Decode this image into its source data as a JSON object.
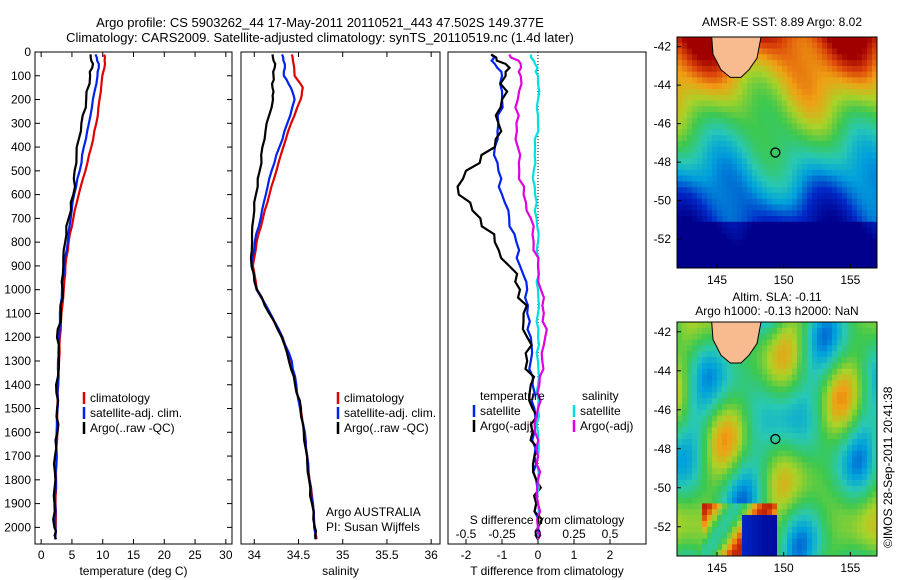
{
  "header": {
    "line1": "Argo profile: CS 5903262_44 17-May-2011 20110521_443 47.502S 149.377E",
    "line2": "Climatology: CARS2009. Satellite-adjusted climatology: synTS_20110519.nc (1.4d later)"
  },
  "colors": {
    "climatology": "#e00000",
    "satellite": "#0022ee",
    "argo": "#000000",
    "salinity_satellite": "#00e0e0",
    "salinity_argo": "#e000e0"
  },
  "chart_data": [
    {
      "type": "line",
      "panel": "temperature",
      "xlabel": "temperature (deg C)",
      "ylabel": "",
      "xlim": [
        -1,
        31
      ],
      "ylim": [
        2070,
        0
      ],
      "x_ticks": [
        "0",
        "5",
        "10",
        "15",
        "20",
        "25",
        "30"
      ],
      "y_ticks": [
        "0",
        "100",
        "200",
        "300",
        "400",
        "500",
        "600",
        "700",
        "800",
        "900",
        "1000",
        "1100",
        "1200",
        "1300",
        "1400",
        "1500",
        "1600",
        "1700",
        "1800",
        "1900",
        "2000"
      ],
      "legend": [
        "climatology",
        "satellite-adj. clim.",
        "Argo(..raw -QC)"
      ],
      "legend_position": "lower-right",
      "y": [
        10,
        50,
        100,
        200,
        300,
        400,
        500,
        600,
        700,
        800,
        900,
        1000,
        1100,
        1200,
        1300,
        1400,
        1500,
        1600,
        1700,
        1800,
        1900,
        2000,
        2050
      ],
      "series": [
        {
          "name": "climatology",
          "values": [
            10.2,
            10.3,
            10.0,
            9.5,
            8.9,
            8.2,
            7.2,
            6.1,
            5.2,
            4.5,
            4.0,
            3.6,
            3.3,
            3.1,
            2.9,
            2.8,
            2.7,
            2.6,
            2.5,
            2.45,
            2.4,
            2.3,
            2.3
          ]
        },
        {
          "name": "satellite-adj. clim.",
          "values": [
            8.9,
            9.3,
            9.1,
            8.5,
            7.8,
            7.0,
            6.2,
            5.4,
            4.8,
            4.3,
            3.8,
            3.4,
            3.1,
            2.9,
            2.8,
            2.7,
            2.6,
            2.55,
            2.5,
            2.4,
            2.35,
            2.3,
            2.3
          ]
        },
        {
          "name": "Argo(..raw -QC)",
          "values": [
            8.1,
            8.3,
            8.0,
            7.2,
            6.5,
            6.0,
            5.6,
            5.0,
            4.5,
            4.1,
            3.7,
            3.3,
            3.0,
            2.8,
            2.7,
            2.6,
            2.55,
            2.5,
            2.45,
            2.4,
            2.35,
            2.3,
            2.3
          ]
        }
      ]
    },
    {
      "type": "line",
      "panel": "salinity",
      "xlabel": "salinity",
      "xlim": [
        33.85,
        36.1
      ],
      "ylim": [
        2070,
        0
      ],
      "x_ticks": [
        "34",
        "34.5",
        "35",
        "35.5",
        "36"
      ],
      "legend": [
        "climatology",
        "satellite-adj. clim.",
        "Argo(..raw -QC)"
      ],
      "legend_position": "lower-right",
      "annotation": [
        "Argo AUSTRALIA",
        "PI: Susan Wijffels"
      ],
      "y": [
        10,
        50,
        100,
        150,
        200,
        300,
        400,
        500,
        600,
        700,
        800,
        900,
        1000,
        1100,
        1200,
        1300,
        1400,
        1500,
        1600,
        1700,
        1800,
        1900,
        2000,
        2050
      ],
      "series": [
        {
          "name": "climatology",
          "values": [
            34.42,
            34.44,
            34.46,
            34.55,
            34.52,
            34.42,
            34.33,
            34.25,
            34.17,
            34.1,
            34.03,
            33.98,
            34.03,
            34.18,
            34.32,
            34.42,
            34.47,
            34.52,
            34.57,
            34.6,
            34.63,
            34.66,
            34.68,
            34.7
          ]
        },
        {
          "name": "satellite-adj. clim.",
          "values": [
            34.32,
            34.34,
            34.33,
            34.42,
            34.46,
            34.38,
            34.28,
            34.2,
            34.13,
            34.07,
            34.01,
            33.97,
            34.03,
            34.18,
            34.32,
            34.42,
            34.47,
            34.52,
            34.57,
            34.6,
            34.63,
            34.66,
            34.68,
            34.7
          ]
        },
        {
          "name": "Argo(..raw -QC)",
          "values": [
            34.21,
            34.23,
            34.22,
            34.2,
            34.21,
            34.15,
            34.1,
            34.05,
            34.02,
            34.0,
            33.98,
            33.96,
            34.02,
            34.18,
            34.3,
            34.4,
            34.46,
            34.52,
            34.57,
            34.6,
            34.63,
            34.66,
            34.68,
            34.7
          ]
        }
      ]
    },
    {
      "type": "line",
      "panel": "difference",
      "xlabel": "T difference from climatology",
      "xlabel_top": "S difference from climatology",
      "xlim": [
        -2.5,
        3.0
      ],
      "ylim": [
        2070,
        0
      ],
      "x_ticks": [
        "-2",
        "-1",
        "0",
        "1",
        "2"
      ],
      "x2_ticks": [
        "-0.5",
        "-0.25",
        "0",
        "0.25",
        "0.5"
      ],
      "legend_temperature": {
        "title": "temperature",
        "items": [
          "satellite",
          "Argo(-adj)"
        ]
      },
      "legend_salinity": {
        "title": "salinity",
        "items": [
          "satellite",
          "Argo(-adj)"
        ]
      },
      "y": [
        10,
        50,
        100,
        200,
        300,
        400,
        500,
        600,
        700,
        800,
        900,
        1000,
        1100,
        1200,
        1300,
        1400,
        1500,
        1600,
        1700,
        1800,
        1900,
        2000,
        2050
      ],
      "series": [
        {
          "name": "temperature satellite",
          "values": [
            -1.3,
            -1.2,
            -1.0,
            -1.0,
            -1.1,
            -1.2,
            -1.1,
            -1.0,
            -0.8,
            -0.6,
            -0.5,
            -0.3,
            -0.3,
            -0.2,
            -0.2,
            -0.15,
            -0.1,
            -0.1,
            -0.1,
            -0.05,
            -0.05,
            0.0,
            0.0
          ]
        },
        {
          "name": "temperature Argo(-adj)",
          "values": [
            -1.3,
            -0.9,
            -0.9,
            -1.0,
            -1.1,
            -1.2,
            -2.0,
            -2.2,
            -1.6,
            -1.2,
            -0.8,
            -0.5,
            -0.4,
            -0.3,
            -0.3,
            -0.2,
            -0.15,
            -0.15,
            -0.1,
            -0.05,
            -0.05,
            0.0,
            0.0
          ]
        },
        {
          "name": "salinity satellite",
          "values": [
            -0.05,
            -0.02,
            0.0,
            0.0,
            0.0,
            -0.02,
            -0.03,
            -0.02,
            -0.01,
            0.0,
            0.0,
            0.0,
            0.0,
            0.0,
            0.0,
            0.0,
            0.0,
            0.0,
            0.0,
            0.0,
            0.0,
            0.0,
            0.0
          ]
        },
        {
          "name": "salinity Argo(-adj)",
          "values": [
            -0.2,
            -0.12,
            -0.12,
            -0.14,
            -0.15,
            -0.14,
            -0.13,
            -0.1,
            -0.05,
            -0.03,
            0.0,
            0.02,
            0.04,
            0.05,
            0.03,
            0.01,
            0.0,
            -0.02,
            0.0,
            0.0,
            0.0,
            0.0,
            0.0
          ]
        }
      ]
    },
    {
      "type": "heatmap",
      "panel": "sst_map",
      "title": "AMSR-E SST: 8.89 Argo: 8.02",
      "x_ticks": [
        "145",
        "150",
        "155"
      ],
      "y_ticks": [
        "-42",
        "-44",
        "-46",
        "-48",
        "-50",
        "-52"
      ],
      "xlim": [
        142,
        157
      ],
      "ylim": [
        -53.5,
        -41.5
      ],
      "argo_position": {
        "lon": 149.377,
        "lat": -47.502
      }
    },
    {
      "type": "heatmap",
      "panel": "sla_map",
      "title": "Altim. SLA: -0.11",
      "subtitle": "Argo h1000: -0.13 h2000: NaN",
      "x_ticks": [
        "145",
        "150",
        "155"
      ],
      "y_ticks": [
        "-42",
        "-44",
        "-46",
        "-48",
        "-50",
        "-52"
      ],
      "xlim": [
        142,
        157
      ],
      "ylim": [
        -53.5,
        -41.5
      ],
      "argo_position": {
        "lon": 149.377,
        "lat": -47.502
      }
    }
  ],
  "watermark": "©IMOS 28-Sep-2011 20:41:38"
}
